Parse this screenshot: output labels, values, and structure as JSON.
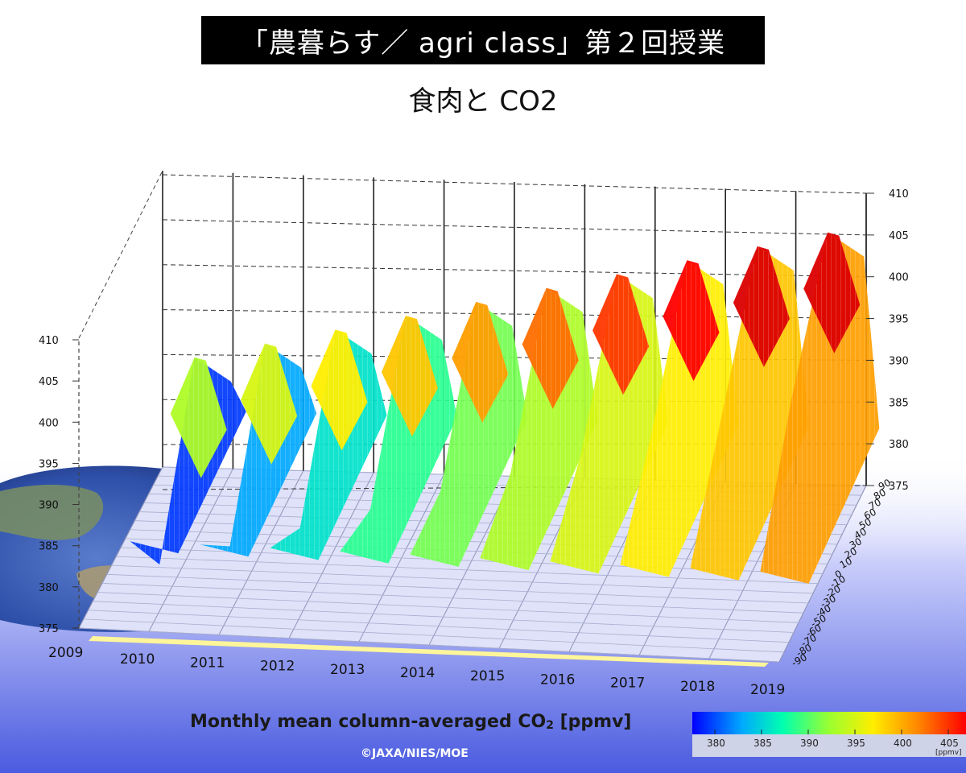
{
  "header": {
    "title": "「農暮らす／ agri class」第２回授業",
    "subtitle": "食肉と CO2"
  },
  "colors": {
    "title_bg": "#000000",
    "gradient_bottom": "#4a5be0",
    "floor": "#dde0f8",
    "year_bar": "#fff59a"
  },
  "chart_data": {
    "type": "3d-surface",
    "variable": "Monthly mean column-averaged CO2",
    "unit": "ppmv",
    "x_axis": {
      "ticks": [
        "2009",
        "2010",
        "2011",
        "2012",
        "2013",
        "2014",
        "2015",
        "2016",
        "2017",
        "2018",
        "2019"
      ]
    },
    "y_axis": {
      "ticks": [
        "90",
        "80",
        "70",
        "60",
        "50",
        "40",
        "30",
        "20",
        "10",
        "0",
        "-10",
        "-20",
        "-30",
        "-40",
        "-50",
        "-60",
        "-70",
        "-80",
        "-90"
      ]
    },
    "z_axis": {
      "range": [
        375,
        410
      ],
      "ticks": [
        "375",
        "380",
        "385",
        "390",
        "395",
        "400",
        "405",
        "410"
      ]
    },
    "peak_by_year": [
      {
        "year": 2009.5,
        "value": 391
      },
      {
        "year": 2010.5,
        "value": 393
      },
      {
        "year": 2011.5,
        "value": 395
      },
      {
        "year": 2012.5,
        "value": 397
      },
      {
        "year": 2013.5,
        "value": 399
      },
      {
        "year": 2014.5,
        "value": 401
      },
      {
        "year": 2015.5,
        "value": 403
      },
      {
        "year": 2016.5,
        "value": 405
      },
      {
        "year": 2017.5,
        "value": 407
      },
      {
        "year": 2018.5,
        "value": 409
      }
    ],
    "colorbar": {
      "ticks": [
        "380",
        "385",
        "390",
        "395",
        "400",
        "405"
      ],
      "unit": "[ppmv]"
    },
    "caption": "Monthly mean column-averaged CO",
    "caption_sub": "2",
    "caption_unit": " [ppmv]",
    "credit": "©JAXA/NIES/MOE"
  }
}
